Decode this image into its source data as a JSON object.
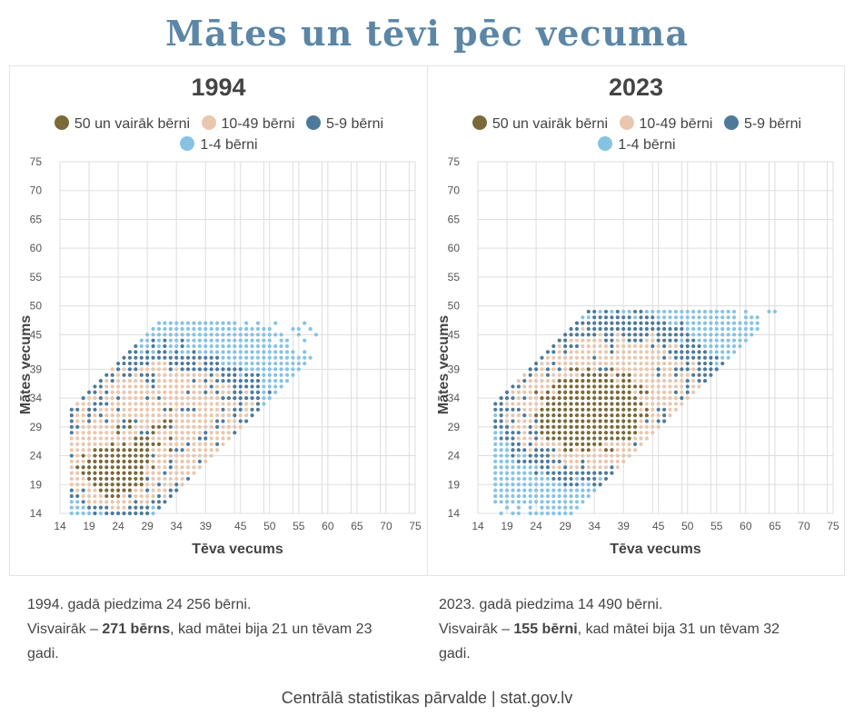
{
  "title": "Mātes un tēvi pēc vecuma",
  "legend": [
    {
      "label": "50 un vairāk bērni",
      "color": "#7a6a3a"
    },
    {
      "label": "10-49 bērni",
      "color": "#e8c7ae"
    },
    {
      "label": "5-9 bērni",
      "color": "#4e7a9a"
    },
    {
      "label": "1-4 bērni",
      "color": "#86c3e3"
    }
  ],
  "panels": [
    {
      "year": "1994",
      "note": {
        "line1": "1994. gadā piedzima 24 256 bērni.",
        "pre": "Visvairāk – ",
        "bold": "271 bērns",
        "post": ", kad mātei bija 21 un tēvam 23 gadi."
      }
    },
    {
      "year": "2023",
      "note": {
        "line1": "2023. gadā piedzima 14 490 bērni.",
        "pre": "Visvairāk – ",
        "bold": "155 bērni",
        "post": ", kad mātei bija 31 un tēvam 32 gadi."
      }
    }
  ],
  "source": "Centrālā statistikas pārvalde | stat.gov.lv",
  "chart_data": [
    {
      "type": "scatter",
      "title": "1994",
      "xlabel": "Tēva vecums",
      "ylabel": "Mātes vecums",
      "xlim": [
        14,
        75
      ],
      "ylim": [
        14,
        75
      ],
      "xticks": [
        14,
        19,
        24,
        29,
        34,
        39,
        45,
        50,
        55,
        60,
        65,
        70,
        75
      ],
      "yticks": [
        14,
        19,
        24,
        29,
        34,
        39,
        45,
        50,
        55,
        60,
        65,
        70,
        75
      ],
      "categories": [
        "50 un vairāk bērni",
        "10-49 bērni",
        "5-9 bērni",
        "1-4 bērni"
      ],
      "peak": {
        "mother_age": 21,
        "father_age": 23,
        "births": 271
      },
      "total_births": 24256,
      "region_model": {
        "core": [
          {
            "x": 23,
            "y": 21
          },
          {
            "x": 31,
            "y": 29
          }
        ],
        "spread": [
          {
            "x": 4.0,
            "y": 3.2
          },
          {
            "x": 13,
            "y": 9
          }
        ],
        "min": [
          16,
          14
        ],
        "max": [
          68,
          47
        ]
      }
    },
    {
      "type": "scatter",
      "title": "2023",
      "xlabel": "Tēva vecums",
      "ylabel": "Mātes vecums",
      "xlim": [
        14,
        75
      ],
      "ylim": [
        14,
        75
      ],
      "xticks": [
        14,
        19,
        24,
        29,
        34,
        39,
        45,
        50,
        55,
        60,
        65,
        70,
        75
      ],
      "yticks": [
        14,
        19,
        24,
        29,
        34,
        39,
        45,
        50,
        55,
        60,
        65,
        70,
        75
      ],
      "categories": [
        "50 un vairāk bērni",
        "10-49 bērni",
        "5-9 bērni",
        "1-4 bērni"
      ],
      "peak": {
        "mother_age": 31,
        "father_age": 32,
        "births": 155
      },
      "total_births": 14490,
      "region_model": {
        "core": [
          {
            "x": 32,
            "y": 31
          },
          {
            "x": 37,
            "y": 34
          }
        ],
        "spread": [
          {
            "x": 5.5,
            "y": 4.0
          },
          {
            "x": 13,
            "y": 9.5
          }
        ],
        "min": [
          17,
          14
        ],
        "max": [
          72,
          49
        ]
      }
    }
  ]
}
